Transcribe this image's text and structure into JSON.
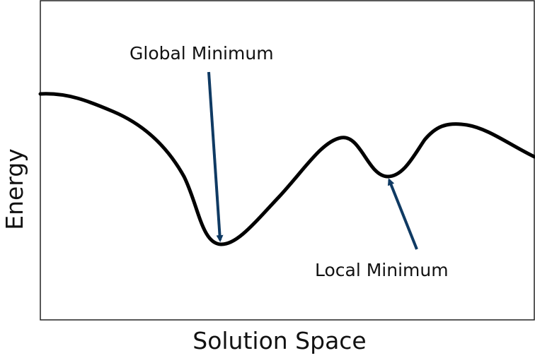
{
  "diagram": {
    "y_axis_label": "Energy",
    "x_axis_label": "Solution Space",
    "global_label": "Global Minimum",
    "local_label": "Local Minimum"
  },
  "colors": {
    "curve": "#000000",
    "arrow": "#0f3a63",
    "frame": "#222222",
    "text": "#111111"
  }
}
